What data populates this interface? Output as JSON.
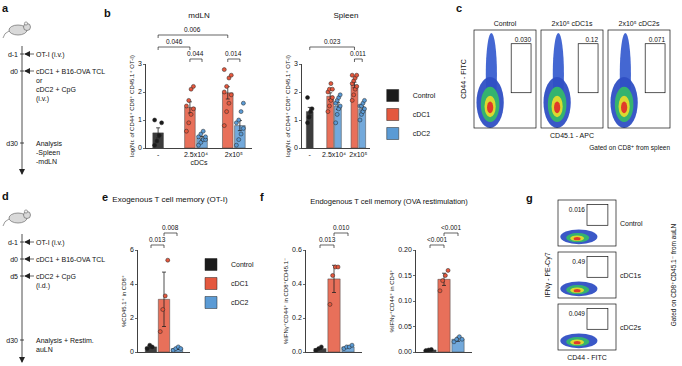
{
  "chart_data": [
    {
      "panel": "b",
      "type": "bar",
      "title": "mdLN",
      "y_label": "log(Nr. of CD44⁺ CD8⁺ CD45.1⁺ OT-I)",
      "x_label": "cDCs",
      "categories": [
        "-",
        "2.5x10⁴",
        "2x10⁵"
      ],
      "ylim": [
        0,
        3
      ],
      "yticks": [
        0,
        1,
        2,
        3
      ],
      "series": [
        {
          "name": "Control",
          "color": "#1b1b1b",
          "values": [
            0.54,
            null,
            null
          ],
          "errors": [
            0.18,
            null,
            null
          ],
          "points": [
            [
              0.1,
              0.25,
              0.45,
              0.9,
              1.0
            ],
            null,
            null
          ]
        },
        {
          "name": "cDC1",
          "color": "#e4583e",
          "values": [
            null,
            1.45,
            1.97
          ],
          "errors": [
            null,
            0.2,
            0.22
          ],
          "points": [
            null,
            [
              0.6,
              0.9,
              1.2,
              1.4,
              1.5,
              1.7,
              2.1,
              2.2
            ],
            [
              0.8,
              1.3,
              1.6,
              1.9,
              2.0,
              2.2,
              2.5,
              2.6,
              2.8
            ]
          ]
        },
        {
          "name": "cDC2",
          "color": "#5b9bd5",
          "values": [
            null,
            0.35,
            0.8
          ],
          "errors": [
            null,
            0.06,
            0.18
          ],
          "points": [
            null,
            [
              0.1,
              0.2,
              0.3,
              0.3,
              0.4,
              0.5,
              0.6,
              0.4
            ],
            [
              0.1,
              0.3,
              0.5,
              0.7,
              0.9,
              1.0,
              1.3,
              1.6
            ]
          ]
        }
      ],
      "significance": [
        {
          "label": "0.046",
          "from": [
            "Control",
            "-"
          ],
          "to": [
            "cDC1",
            "2.5x10⁴"
          ]
        },
        {
          "label": "0.044",
          "from": [
            "cDC1",
            "2.5x10⁴"
          ],
          "to": [
            "cDC2",
            "2.5x10⁴"
          ]
        },
        {
          "label": "0.006",
          "from": [
            "Control",
            "-"
          ],
          "to": [
            "cDC1",
            "2x10⁵"
          ]
        },
        {
          "label": "0.014",
          "from": [
            "cDC1",
            "2x10⁵"
          ],
          "to": [
            "cDC2",
            "2x10⁵"
          ]
        }
      ]
    },
    {
      "panel": "b",
      "type": "bar",
      "title": "Spleen",
      "y_label": "log(Nr. of CD44⁺ CD8⁺ CD45.1⁺ OT-I)",
      "categories": [
        "-",
        "2.5x10⁴",
        "2x10⁵"
      ],
      "ylim": [
        0,
        3
      ],
      "yticks": [
        0,
        1,
        2,
        3
      ],
      "legend": "right",
      "series": [
        {
          "name": "Control",
          "color": "#1b1b1b",
          "values": [
            1.3,
            null,
            null
          ],
          "errors": [
            0.15,
            null,
            null
          ],
          "points": [
            [
              0.9,
              1.1,
              1.3,
              1.4,
              1.8
            ],
            null,
            null
          ]
        },
        {
          "name": "cDC1",
          "color": "#e4583e",
          "values": [
            null,
            1.85,
            2.25
          ],
          "errors": [
            null,
            0.12,
            0.1
          ],
          "points": [
            null,
            [
              1.3,
              1.5,
              1.7,
              1.8,
              2.0,
              2.1,
              2.3,
              2.1
            ],
            [
              1.7,
              1.9,
              2.1,
              2.2,
              2.3,
              2.4,
              2.5,
              2.6,
              2.6
            ]
          ]
        },
        {
          "name": "cDC2",
          "color": "#5b9bd5",
          "values": [
            null,
            1.5,
            1.4
          ],
          "errors": [
            null,
            0.12,
            0.08
          ],
          "points": [
            null,
            [
              0.9,
              1.2,
              1.4,
              1.5,
              1.6,
              1.7,
              1.8,
              1.9
            ],
            [
              1.0,
              1.2,
              1.3,
              1.4,
              1.5,
              1.5,
              1.6,
              1.7
            ]
          ]
        }
      ],
      "significance": [
        {
          "label": "0.023",
          "from": [
            "Control",
            "-"
          ],
          "to": [
            "cDC1",
            "2x10⁵"
          ]
        },
        {
          "label": "0.011",
          "from": [
            "cDC1",
            "2x10⁵"
          ],
          "to": [
            "cDC2",
            "2x10⁵"
          ]
        }
      ]
    },
    {
      "panel": "e",
      "type": "bar",
      "title": "Exogenous T cell memory (OT-I)",
      "y_label": "%CD45.1⁺ in CD8⁺",
      "categories": [
        null
      ],
      "tick_labels": "y",
      "ylim": [
        0,
        6
      ],
      "yticks": [
        0,
        2,
        4,
        6
      ],
      "legend": "top right",
      "series": [
        {
          "name": "Control",
          "color": "#1b1b1b",
          "values": [
            0.3
          ],
          "errors": [
            0.06
          ],
          "points": [
            [
              0.2,
              0.4,
              0.3
            ]
          ]
        },
        {
          "name": "cDC1",
          "color": "#e4583e",
          "values": [
            3.1
          ],
          "errors": [
            1.6
          ],
          "points": [
            [
              1.2,
              2.5,
              3.3,
              5.4
            ]
          ]
        },
        {
          "name": "cDC2",
          "color": "#5b9bd5",
          "values": [
            0.2
          ],
          "errors": [
            0.05
          ],
          "points": [
            [
              0.1,
              0.2,
              0.3,
              0.2
            ]
          ]
        }
      ],
      "significance": [
        {
          "label": "0.013",
          "from": [
            "Control",
            null
          ],
          "to": [
            "cDC1",
            null
          ]
        },
        {
          "label": "0.008",
          "from": [
            "cDC1",
            null
          ],
          "to": [
            "cDC2",
            null
          ]
        }
      ]
    },
    {
      "panel": "f",
      "type": "bar",
      "y_label": "%IFNγ⁺CD44⁺ in CD8⁺CD45.1⁻",
      "categories": [
        null
      ],
      "tick_labels": "y",
      "ylim": [
        0,
        0.6
      ],
      "yticks": [
        {
          "value": 0,
          "label": "0.0"
        },
        0.2,
        0.4,
        0.6
      ],
      "series": [
        {
          "name": "Control",
          "color": "#1b1b1b",
          "values": [
            0.02
          ],
          "errors": [
            0.005
          ],
          "points": [
            [
              0.01,
              0.02,
              0.03
            ]
          ]
        },
        {
          "name": "cDC1",
          "color": "#e4583e",
          "values": [
            0.43
          ],
          "errors": [
            0.08
          ],
          "points": [
            [
              0.28,
              0.45,
              0.5,
              0.5
            ]
          ]
        },
        {
          "name": "cDC2",
          "color": "#5b9bd5",
          "values": [
            0.03
          ],
          "errors": [
            0.005
          ],
          "points": [
            [
              0.02,
              0.03,
              0.03,
              0.04
            ]
          ]
        }
      ],
      "significance": [
        {
          "label": "0.013",
          "from": [
            "Control",
            null
          ],
          "to": [
            "cDC1",
            null
          ]
        },
        {
          "label": "0.010",
          "from": [
            "cDC1",
            null
          ],
          "to": [
            "cDC2",
            null
          ]
        }
      ]
    },
    {
      "panel": "f",
      "type": "bar",
      "y_label": "%IFNγ⁺CD44⁺ in CD4⁺",
      "categories": [
        null
      ],
      "tick_labels": "y",
      "ylim": [
        0,
        0.2
      ],
      "yticks": [
        {
          "value": 0,
          "label": "0.00"
        },
        0.05,
        {
          "value": 0.1,
          "label": "0.10"
        },
        0.15,
        {
          "value": 0.2,
          "label": "0.20"
        }
      ],
      "series": [
        {
          "name": "Control",
          "color": "#1b1b1b",
          "values": [
            0.004
          ],
          "errors": [
            0.001
          ],
          "points": [
            [
              0.003,
              0.004,
              0.005
            ]
          ]
        },
        {
          "name": "cDC1",
          "color": "#e4583e",
          "values": [
            0.1425
          ],
          "errors": [
            0.012
          ],
          "points": [
            [
              0.12,
              0.14,
              0.15,
              0.16
            ]
          ]
        },
        {
          "name": "cDC2",
          "color": "#5b9bd5",
          "values": [
            0.025
          ],
          "errors": [
            0.004
          ],
          "points": [
            [
              0.02,
              0.025,
              0.03,
              0.025
            ]
          ]
        }
      ],
      "significance": [
        {
          "label": "<0.001",
          "from": [
            "Control",
            null
          ],
          "to": [
            "cDC1",
            null
          ]
        },
        {
          "label": "<0.001",
          "from": [
            "cDC1",
            null
          ],
          "to": [
            "cDC2",
            null
          ]
        }
      ]
    }
  ],
  "panel_titles": {
    "f": "Endogenous T cell memory (OVA restimulation)"
  },
  "schematics": [
    {
      "panel": "a",
      "events": [
        {
          "day": "d-1",
          "lines": [
            "OT-I (i.v.)"
          ]
        },
        {
          "day": "d0",
          "lines": [
            "cDC1 + B16-OVA TCL",
            "or",
            "cDC2 + CpG",
            "(i.v.)"
          ]
        },
        {
          "day": "d30",
          "lines": [
            "Analysis",
            "-Spleen",
            "-mdLN"
          ]
        }
      ]
    },
    {
      "panel": "d",
      "events": [
        {
          "day": "d-1",
          "lines": [
            "OT-I (i.v.)"
          ]
        },
        {
          "day": "d0",
          "lines": [
            "cDC1 + B16-OVA TCL"
          ]
        },
        {
          "day": "d5",
          "lines": [
            "cDC2 + CpG",
            "(i.d.)"
          ]
        },
        {
          "day": "d30",
          "lines": [
            "Analysis + Restim.",
            "auLN"
          ]
        }
      ]
    }
  ],
  "flow_panels": [
    {
      "panel": "c",
      "x_label": "CD45.1 - APC",
      "y_label": "CD44 - FITC",
      "gating": "Gated on CD8⁺ from spleen",
      "plots": [
        {
          "name": "Control",
          "gate": "0.030"
        },
        {
          "name": "2x10⁵ cDC1s",
          "gate": "0.12"
        },
        {
          "name": "2x10⁵ cDC2s",
          "gate": "0.071"
        }
      ]
    },
    {
      "panel": "g",
      "x_label": "CD44 - FITC",
      "y_label": "IFNγ - PE-Cy7",
      "gating": "Gated on CD8⁺CD45.1⁻ from auLN",
      "plots": [
        {
          "name": "Control",
          "gate": "0.016"
        },
        {
          "name": "cDC1s",
          "gate": "0.49"
        },
        {
          "name": "cDC2s",
          "gate": "0.049"
        }
      ]
    }
  ]
}
